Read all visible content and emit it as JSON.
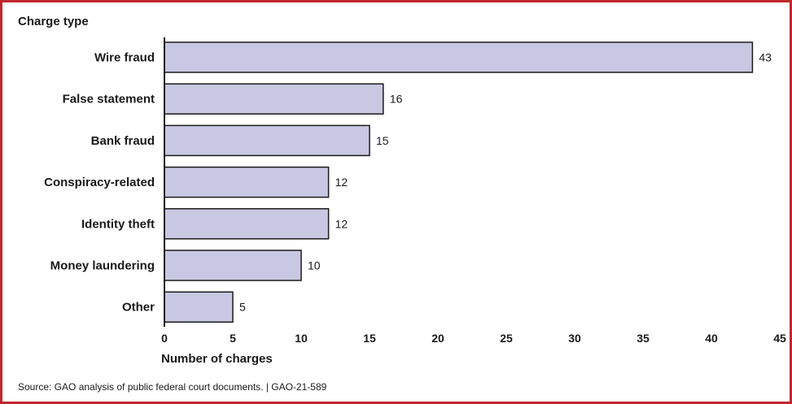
{
  "chart_data": {
    "type": "bar",
    "orientation": "horizontal",
    "ylabel": "Charge type",
    "xlabel": "Number of charges",
    "categories": [
      "Wire fraud",
      "False statement",
      "Bank fraud",
      "Conspiracy-related",
      "Identity theft",
      "Money laundering",
      "Other"
    ],
    "values": [
      43,
      16,
      15,
      12,
      12,
      10,
      5
    ],
    "value_labels": [
      "43",
      "16",
      "15",
      "12",
      "12",
      "10",
      "5"
    ],
    "xlim": [
      0,
      45
    ],
    "xticks": [
      "0",
      "5",
      "10",
      "15",
      "20",
      "25",
      "30",
      "35",
      "40",
      "45"
    ],
    "grid": false,
    "bar_color": "#c8c8e2",
    "bar_edge_color": "#1a1a1a"
  },
  "source_note": "Source: GAO analysis of public federal court documents.  |  GAO-21-589",
  "border_color": "#c0272d"
}
